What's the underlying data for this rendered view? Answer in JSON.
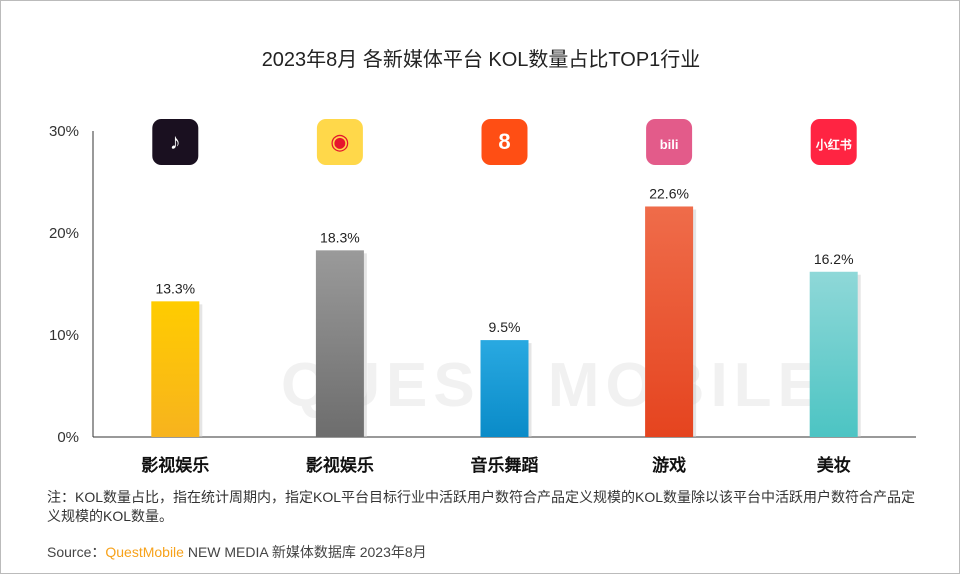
{
  "title": "2023年8月 各新媒体平台 KOL数量占比TOP1行业",
  "watermark": "QUEST MOBILE",
  "chart_data": {
    "type": "bar",
    "categories": [
      "影视娱乐",
      "影视娱乐",
      "音乐舞蹈",
      "游戏",
      "美妆"
    ],
    "platform_icons": [
      "douyin-icon",
      "weibo-icon",
      "kuaishou-icon",
      "bilibili-icon",
      "xiaohongshu-icon"
    ],
    "values": [
      13.3,
      18.3,
      9.5,
      22.6,
      16.2
    ],
    "data_labels": [
      "13.3%",
      "18.3%",
      "9.5%",
      "22.6%",
      "16.2%"
    ],
    "bar_colors": [
      [
        "#ffcc00",
        "#f7b31e"
      ],
      [
        "#9a9a9a",
        "#6d6d6d"
      ],
      [
        "#29a9e1",
        "#0a8bc8"
      ],
      [
        "#ef6c4a",
        "#e5441f"
      ],
      [
        "#8fd8d8",
        "#4cc4c3"
      ]
    ],
    "ylim": [
      0,
      30
    ],
    "yticks": [
      0,
      10,
      20,
      30
    ],
    "ytick_labels": [
      "0%",
      "10%",
      "20%",
      "30%"
    ],
    "grid": false,
    "xlabel": "",
    "ylabel": ""
  },
  "notes": {
    "note": "注：KOL数量占比，指在统计周期内，指定KOL平台目标行业中活跃用户数符合产品定义规模的KOL数量除以该平台中活跃用户数符合产品定义规模的KOL数量。",
    "source_prefix": "Source：",
    "source_brand": "QuestMobile",
    "source_rest": " NEW MEDIA 新媒体数据库 2023年8月"
  }
}
